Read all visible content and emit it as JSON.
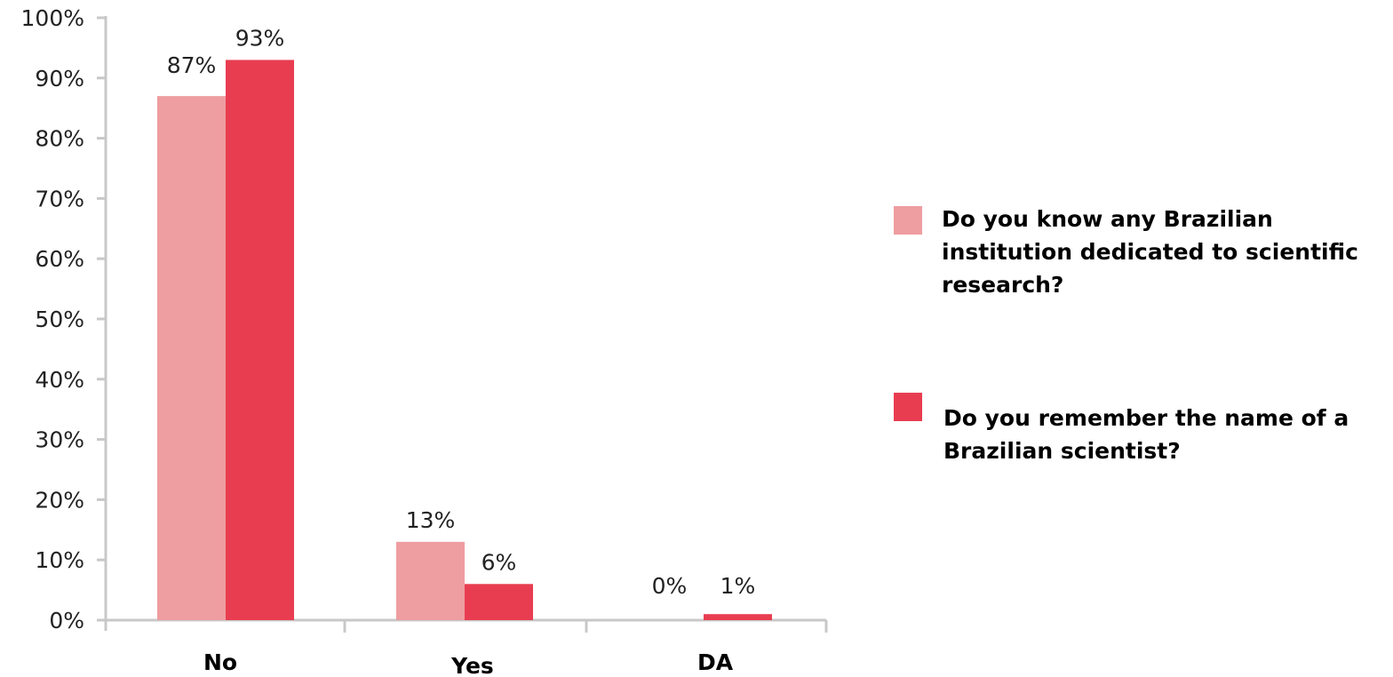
{
  "chart_data": {
    "type": "bar",
    "categories": [
      "No",
      "Yes",
      "DA"
    ],
    "series": [
      {
        "name": "Do you know any Brazilian institution dedicated to scientific research?",
        "values": [
          87,
          13,
          0
        ],
        "labels": [
          "87%",
          "13%",
          "0%"
        ],
        "color": "#ee9da0"
      },
      {
        "name": "Do you remember the name of a Brazilian scientist?",
        "values": [
          93,
          6,
          1
        ],
        "labels": [
          "93%",
          "6%",
          "1%"
        ],
        "color": "#e83d50"
      }
    ],
    "yticks": [
      "0%",
      "10%",
      "20%",
      "30%",
      "40%",
      "50%",
      "60%",
      "70%",
      "80%",
      "90%",
      "100%"
    ],
    "ylim": [
      0,
      100
    ],
    "title": "",
    "xlabel": "",
    "ylabel": "",
    "grid": false,
    "legend": "right"
  }
}
